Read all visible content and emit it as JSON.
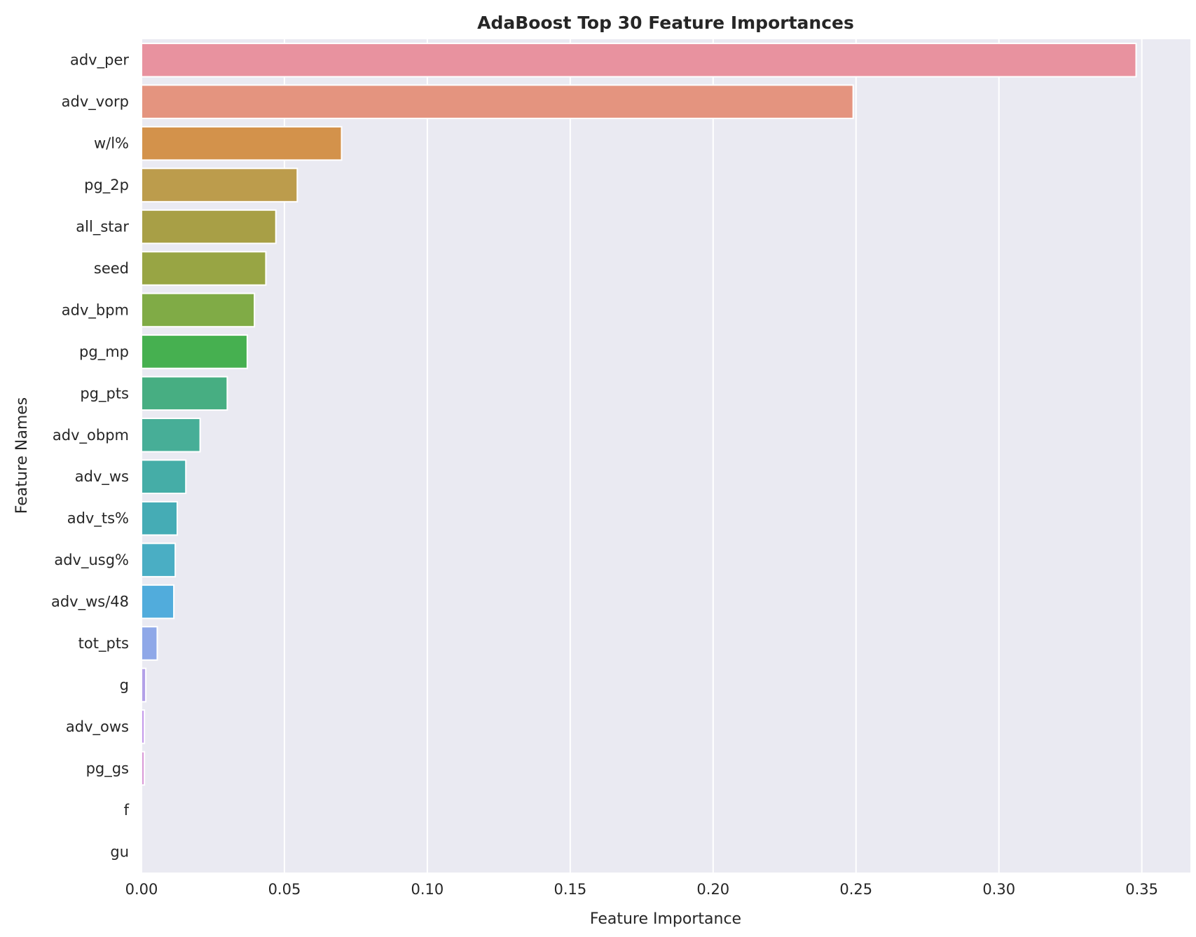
{
  "chart_data": {
    "type": "bar",
    "orientation": "horizontal",
    "title": "AdaBoost Top 30 Feature Importances",
    "xlabel": "Feature Importance",
    "ylabel": "Feature Names",
    "xlim": [
      0,
      0.367
    ],
    "xticks": [
      0.0,
      0.05,
      0.1,
      0.15,
      0.2,
      0.25,
      0.3,
      0.35
    ],
    "xtick_labels": [
      "0.00",
      "0.05",
      "0.10",
      "0.15",
      "0.20",
      "0.25",
      "0.30",
      "0.35"
    ],
    "grid": true,
    "background": "#eaeaf2",
    "categories": [
      "adv_per",
      "adv_vorp",
      "w/l%",
      "pg_2p",
      "all_star",
      "seed",
      "adv_bpm",
      "pg_mp",
      "pg_pts",
      "adv_obpm",
      "adv_ws",
      "adv_ts%",
      "adv_usg%",
      "adv_ws/48",
      "tot_pts",
      "g",
      "adv_ows",
      "pg_gs",
      "f",
      "gu"
    ],
    "values": [
      0.348,
      0.249,
      0.07,
      0.0545,
      0.047,
      0.0435,
      0.0395,
      0.037,
      0.03,
      0.0205,
      0.0155,
      0.0125,
      0.0118,
      0.0113,
      0.0055,
      0.0015,
      0.001,
      0.001,
      0.0,
      0.0
    ],
    "colors": [
      "#e8929f",
      "#e4947f",
      "#d3924b",
      "#bc9c4c",
      "#a89f46",
      "#98a544",
      "#80ab46",
      "#46b050",
      "#47ae82",
      "#47ae97",
      "#45ada7",
      "#45acb5",
      "#4aaec4",
      "#51acdc",
      "#8fa8e8",
      "#b3a0e8",
      "#c49aea",
      "#d99ad8",
      "#ea94c9",
      "#eb93b6"
    ]
  }
}
